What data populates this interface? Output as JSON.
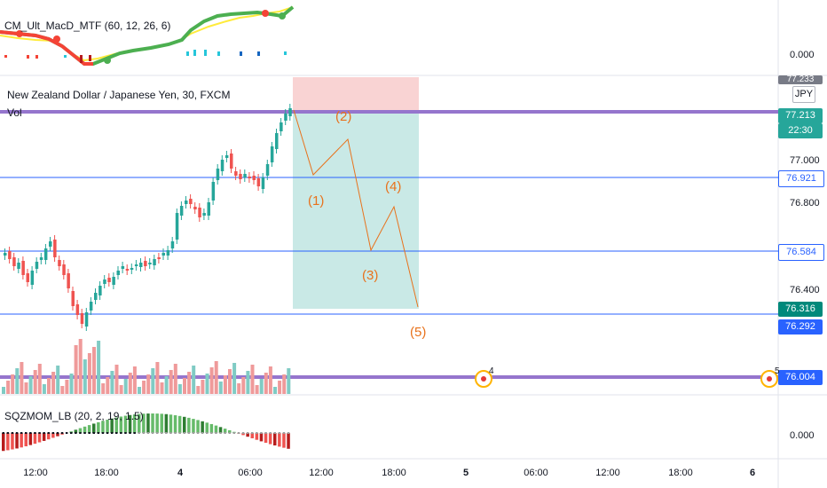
{
  "indicators": {
    "macd": {
      "title": "CM_Ult_MacD_MTF (60, 12, 26, 6)",
      "zero": "0.000"
    },
    "main": {
      "title": "New Zealand Dollar / Japanese Yen, 30, FXCM",
      "vol": "Vol"
    },
    "sqz": {
      "title": "SQZMOM_LB (20, 2, 19, 1.5)",
      "zero": "0.000"
    }
  },
  "price_axis": {
    "ticks": [
      "77.000",
      "76.800",
      "76.400"
    ],
    "top_clip": "77.233",
    "currency": "JPY",
    "labels": {
      "current_price": "77.213",
      "countdown": "22:30",
      "line_1": "76.921",
      "line_2": "76.584",
      "green_price": "76.316",
      "line_3": "76.292",
      "purple_low": "76.004"
    }
  },
  "time_axis": [
    "12:00",
    "18:00",
    "4",
    "06:00",
    "12:00",
    "18:00",
    "5",
    "06:00",
    "12:00",
    "18:00",
    "6"
  ],
  "waves": [
    "(1)",
    "(2)",
    "(3)",
    "(4)",
    "(5)"
  ],
  "alerts": [
    "4",
    "5"
  ],
  "colors": {
    "up": "#26a69a",
    "down": "#ef5350",
    "purple": "#9575cd",
    "blue": "#2962ff",
    "wave": "#e8721c"
  }
}
